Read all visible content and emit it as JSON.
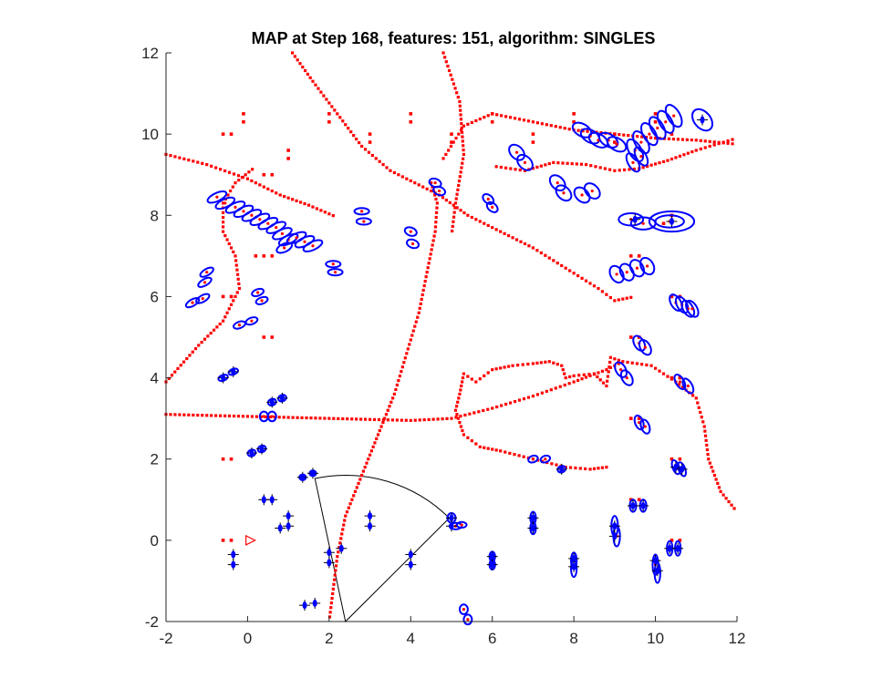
{
  "colors": {
    "landmark": "#ff0000",
    "feature_ellipse": "#0000ff",
    "cross": "#000000",
    "robot": "#ff0000",
    "axes": "#262626"
  },
  "chart_data": {
    "type": "scatter",
    "title": "MAP at Step 168, features: 151, algorithm: SINGLES",
    "xlabel": "",
    "ylabel": "",
    "xlim": [
      -2,
      12
    ],
    "ylim": [
      -2,
      12
    ],
    "x_ticks": [
      -2,
      0,
      2,
      4,
      6,
      8,
      10,
      12
    ],
    "y_ticks": [
      -2,
      0,
      2,
      4,
      6,
      8,
      10,
      12
    ],
    "grid": false,
    "legend": "none",
    "landmark_points": [
      [
        -0.6,
        10.0
      ],
      [
        -0.4,
        10.0
      ],
      [
        -0.1,
        10.5
      ],
      [
        -0.1,
        10.3
      ],
      [
        0.4,
        9.0
      ],
      [
        0.6,
        9.0
      ],
      [
        1.0,
        9.6
      ],
      [
        1.0,
        9.4
      ],
      [
        2.0,
        10.5
      ],
      [
        2.0,
        10.3
      ],
      [
        3.0,
        10.0
      ],
      [
        3.0,
        9.8
      ],
      [
        4.0,
        10.5
      ],
      [
        4.0,
        10.3
      ],
      [
        5.0,
        10.0
      ],
      [
        5.0,
        9.8
      ],
      [
        6.0,
        10.5
      ],
      [
        6.0,
        10.3
      ],
      [
        7.0,
        10.0
      ],
      [
        7.0,
        9.8
      ],
      [
        8.0,
        10.5
      ],
      [
        8.0,
        10.3
      ],
      [
        9.0,
        10.0
      ],
      [
        9.0,
        9.8
      ],
      [
        10.0,
        10.5
      ],
      [
        10.0,
        10.3
      ],
      [
        10.4,
        10.0
      ],
      [
        10.4,
        8.0
      ],
      [
        10.2,
        7.8
      ],
      [
        0.2,
        7.0
      ],
      [
        0.4,
        7.0
      ],
      [
        0.6,
        7.0
      ],
      [
        -0.6,
        6.0
      ],
      [
        -0.4,
        6.0
      ],
      [
        0.4,
        5.0
      ],
      [
        0.6,
        5.0
      ],
      [
        -0.6,
        2.0
      ],
      [
        -0.4,
        2.0
      ],
      [
        -0.6,
        0.0
      ],
      [
        -0.4,
        0.0
      ],
      [
        0.4,
        1.0
      ],
      [
        0.6,
        1.0
      ],
      [
        9.4,
        7.0
      ],
      [
        9.6,
        7.0
      ],
      [
        9.4,
        5.0
      ],
      [
        9.6,
        5.0
      ],
      [
        9.4,
        3.0
      ],
      [
        9.6,
        3.0
      ],
      [
        10.4,
        6.0
      ],
      [
        10.6,
        6.0
      ],
      [
        10.4,
        4.0
      ],
      [
        10.6,
        4.0
      ],
      [
        10.4,
        2.0
      ],
      [
        10.6,
        2.0
      ],
      [
        9.4,
        1.0
      ],
      [
        9.6,
        1.0
      ],
      [
        10.4,
        0.0
      ],
      [
        10.6,
        0.0
      ]
    ],
    "red_tracks": [
      [
        [
          -2.0,
          9.5
        ],
        [
          -1.0,
          9.25
        ],
        [
          0.0,
          8.9
        ],
        [
          0.8,
          8.5
        ],
        [
          1.5,
          8.25
        ],
        [
          2.2,
          7.95
        ]
      ],
      [
        [
          -2.0,
          3.9
        ],
        [
          -1.2,
          4.8
        ],
        [
          -0.6,
          5.4
        ],
        [
          -0.2,
          6.2
        ],
        [
          -0.3,
          7.0
        ],
        [
          -0.6,
          7.6
        ],
        [
          -0.6,
          8.3
        ],
        [
          -0.3,
          8.8
        ],
        [
          0.2,
          9.2
        ]
      ],
      [
        [
          1.1,
          12.0
        ],
        [
          1.6,
          11.3
        ],
        [
          2.2,
          10.5
        ],
        [
          2.8,
          9.7
        ],
        [
          3.5,
          9.1
        ],
        [
          4.3,
          8.7
        ],
        [
          4.7,
          8.5
        ],
        [
          5.4,
          8.0
        ],
        [
          6.2,
          7.6
        ],
        [
          7.0,
          7.2
        ],
        [
          7.8,
          6.7
        ],
        [
          8.6,
          6.2
        ],
        [
          9.0,
          5.9
        ],
        [
          9.5,
          6.0
        ]
      ],
      [
        [
          -2.0,
          3.1
        ],
        [
          0.0,
          3.05
        ],
        [
          2.0,
          3.0
        ],
        [
          4.0,
          2.95
        ],
        [
          5.0,
          3.0
        ],
        [
          6.0,
          3.25
        ],
        [
          7.0,
          3.55
        ],
        [
          8.0,
          3.9
        ],
        [
          8.8,
          4.2
        ],
        [
          9.2,
          4.4
        ]
      ],
      [
        [
          4.8,
          12.0
        ],
        [
          5.2,
          10.8
        ],
        [
          5.3,
          9.5
        ],
        [
          5.1,
          8.3
        ],
        [
          5.0,
          7.5
        ]
      ],
      [
        [
          4.8,
          9.4
        ],
        [
          5.3,
          10.2
        ],
        [
          6.0,
          10.5
        ],
        [
          7.0,
          10.3
        ],
        [
          8.0,
          10.1
        ],
        [
          9.0,
          10.0
        ],
        [
          10.0,
          9.9
        ],
        [
          11.0,
          9.85
        ],
        [
          12.0,
          9.75
        ]
      ],
      [
        [
          6.1,
          9.2
        ],
        [
          6.8,
          9.1
        ],
        [
          7.5,
          9.3
        ],
        [
          8.3,
          9.25
        ],
        [
          9.0,
          9.1
        ],
        [
          9.6,
          9.15
        ],
        [
          10.3,
          9.35
        ],
        [
          11.0,
          9.6
        ],
        [
          12.0,
          9.9
        ]
      ],
      [
        [
          4.5,
          8.8
        ],
        [
          4.65,
          8.3
        ],
        [
          4.6,
          7.6
        ],
        [
          4.4,
          6.6
        ],
        [
          4.2,
          5.6
        ],
        [
          3.9,
          4.6
        ],
        [
          3.6,
          3.6
        ],
        [
          3.2,
          2.6
        ],
        [
          2.8,
          1.6
        ],
        [
          2.4,
          0.6
        ],
        [
          2.2,
          -0.4
        ],
        [
          2.1,
          -1.2
        ],
        [
          2.0,
          -2.0
        ]
      ],
      [
        [
          9.2,
          4.4
        ],
        [
          9.9,
          4.3
        ],
        [
          10.5,
          3.9
        ],
        [
          11.0,
          3.5
        ],
        [
          11.2,
          2.8
        ],
        [
          11.3,
          2.0
        ],
        [
          11.6,
          1.2
        ],
        [
          12.0,
          0.7
        ]
      ],
      [
        [
          8.8,
          1.8
        ],
        [
          8.4,
          1.75
        ],
        [
          7.8,
          1.8
        ],
        [
          7.0,
          2.0
        ],
        [
          6.2,
          2.2
        ],
        [
          5.7,
          2.3
        ],
        [
          5.3,
          2.6
        ],
        [
          5.1,
          3.2
        ],
        [
          5.2,
          3.6
        ],
        [
          5.3,
          4.1
        ],
        [
          5.6,
          3.9
        ],
        [
          6.0,
          4.2
        ],
        [
          6.5,
          4.3
        ],
        [
          7.0,
          4.35
        ],
        [
          7.4,
          4.4
        ],
        [
          7.7,
          4.3
        ],
        [
          7.8,
          4.0
        ]
      ],
      [
        [
          7.8,
          4.0
        ],
        [
          8.0,
          4.05
        ],
        [
          8.5,
          4.1
        ],
        [
          8.8,
          3.8
        ],
        [
          8.9,
          4.5
        ],
        [
          9.2,
          4.4
        ]
      ]
    ],
    "feature_ellipses": [
      [
        -0.75,
        8.45,
        0.25,
        0.1,
        25
      ],
      [
        -0.55,
        8.3,
        0.25,
        0.1,
        25
      ],
      [
        -0.3,
        8.2,
        0.25,
        0.1,
        25
      ],
      [
        -0.1,
        8.1,
        0.25,
        0.1,
        25
      ],
      [
        0.1,
        8.0,
        0.25,
        0.1,
        25
      ],
      [
        0.3,
        7.9,
        0.25,
        0.1,
        25
      ],
      [
        0.5,
        7.8,
        0.25,
        0.1,
        25
      ],
      [
        0.7,
        7.7,
        0.25,
        0.1,
        25
      ],
      [
        0.85,
        7.55,
        0.25,
        0.1,
        25
      ],
      [
        1.0,
        7.4,
        0.25,
        0.1,
        25
      ],
      [
        1.2,
        7.45,
        0.25,
        0.1,
        25
      ],
      [
        1.4,
        7.35,
        0.25,
        0.1,
        25
      ],
      [
        1.6,
        7.25,
        0.25,
        0.1,
        25
      ],
      [
        0.9,
        7.2,
        0.2,
        0.1,
        25
      ],
      [
        2.1,
        6.8,
        0.18,
        0.08,
        0
      ],
      [
        2.15,
        6.6,
        0.18,
        0.08,
        0
      ],
      [
        2.8,
        8.1,
        0.18,
        0.08,
        0
      ],
      [
        2.85,
        7.85,
        0.18,
        0.08,
        0
      ],
      [
        4.0,
        7.6,
        0.15,
        0.1,
        -20
      ],
      [
        4.05,
        7.3,
        0.15,
        0.1,
        -20
      ],
      [
        4.6,
        8.8,
        0.15,
        0.1,
        -20
      ],
      [
        4.7,
        8.6,
        0.15,
        0.1,
        -20
      ],
      [
        5.9,
        8.4,
        0.15,
        0.1,
        -40
      ],
      [
        6.0,
        8.2,
        0.15,
        0.1,
        -40
      ],
      [
        -1.0,
        6.6,
        0.18,
        0.08,
        30
      ],
      [
        -1.05,
        6.35,
        0.18,
        0.08,
        30
      ],
      [
        -1.35,
        5.85,
        0.18,
        0.08,
        30
      ],
      [
        -1.1,
        5.95,
        0.18,
        0.08,
        30
      ],
      [
        0.25,
        6.1,
        0.15,
        0.08,
        20
      ],
      [
        0.35,
        5.9,
        0.15,
        0.08,
        20
      ],
      [
        -0.2,
        5.3,
        0.15,
        0.08,
        20
      ],
      [
        0.1,
        5.4,
        0.15,
        0.08,
        20
      ],
      [
        -0.6,
        4.0,
        0.12,
        0.07,
        20
      ],
      [
        -0.35,
        4.15,
        0.12,
        0.07,
        20
      ],
      [
        0.6,
        3.4,
        0.1,
        0.08,
        20
      ],
      [
        0.85,
        3.5,
        0.1,
        0.08,
        20
      ],
      [
        0.4,
        3.05,
        0.1,
        0.12,
        0
      ],
      [
        0.6,
        3.05,
        0.1,
        0.12,
        0
      ],
      [
        0.1,
        2.15,
        0.1,
        0.08,
        20
      ],
      [
        0.35,
        2.25,
        0.1,
        0.08,
        20
      ],
      [
        1.35,
        1.55,
        0.08,
        0.07,
        0
      ],
      [
        1.6,
        1.65,
        0.08,
        0.07,
        0
      ],
      [
        6.6,
        9.55,
        0.15,
        0.22,
        45
      ],
      [
        6.8,
        9.3,
        0.15,
        0.22,
        45
      ],
      [
        7.6,
        8.8,
        0.15,
        0.22,
        45
      ],
      [
        7.75,
        8.55,
        0.15,
        0.22,
        45
      ],
      [
        8.2,
        8.5,
        0.15,
        0.22,
        45
      ],
      [
        8.45,
        8.6,
        0.15,
        0.22,
        45
      ],
      [
        8.2,
        10.1,
        0.15,
        0.25,
        60
      ],
      [
        8.4,
        9.95,
        0.15,
        0.25,
        60
      ],
      [
        8.6,
        9.85,
        0.15,
        0.25,
        60
      ],
      [
        8.85,
        9.85,
        0.15,
        0.25,
        60
      ],
      [
        9.05,
        9.75,
        0.15,
        0.25,
        60
      ],
      [
        9.5,
        9.6,
        0.15,
        0.3,
        30
      ],
      [
        9.65,
        9.8,
        0.15,
        0.3,
        30
      ],
      [
        9.85,
        10.0,
        0.15,
        0.3,
        30
      ],
      [
        10.05,
        10.15,
        0.15,
        0.3,
        30
      ],
      [
        10.25,
        10.3,
        0.15,
        0.3,
        30
      ],
      [
        10.45,
        10.45,
        0.15,
        0.3,
        30
      ],
      [
        9.45,
        9.3,
        0.12,
        0.25,
        30
      ],
      [
        9.65,
        9.45,
        0.12,
        0.25,
        30
      ],
      [
        11.15,
        10.35,
        0.2,
        0.3,
        40
      ],
      [
        9.4,
        7.9,
        0.3,
        0.15,
        0
      ],
      [
        9.7,
        7.8,
        0.3,
        0.15,
        0
      ],
      [
        10.4,
        7.85,
        0.55,
        0.25,
        0
      ],
      [
        10.35,
        7.85,
        0.35,
        0.15,
        0
      ],
      [
        9.05,
        6.55,
        0.15,
        0.22,
        30
      ],
      [
        9.3,
        6.6,
        0.15,
        0.22,
        30
      ],
      [
        9.55,
        6.7,
        0.15,
        0.22,
        30
      ],
      [
        9.8,
        6.75,
        0.15,
        0.22,
        30
      ],
      [
        10.5,
        5.85,
        0.12,
        0.22,
        30
      ],
      [
        10.65,
        5.8,
        0.12,
        0.22,
        30
      ],
      [
        10.8,
        5.7,
        0.12,
        0.22,
        30
      ],
      [
        10.9,
        5.7,
        0.12,
        0.22,
        30
      ],
      [
        9.6,
        4.85,
        0.12,
        0.2,
        30
      ],
      [
        9.75,
        4.75,
        0.12,
        0.2,
        30
      ],
      [
        9.3,
        4.0,
        0.12,
        0.2,
        30
      ],
      [
        9.15,
        4.2,
        0.12,
        0.2,
        30
      ],
      [
        10.6,
        3.9,
        0.1,
        0.2,
        30
      ],
      [
        10.8,
        3.8,
        0.1,
        0.2,
        30
      ],
      [
        9.6,
        2.9,
        0.1,
        0.18,
        20
      ],
      [
        9.75,
        2.8,
        0.1,
        0.18,
        20
      ],
      [
        10.5,
        1.8,
        0.08,
        0.18,
        20
      ],
      [
        10.65,
        1.75,
        0.08,
        0.18,
        20
      ],
      [
        7.0,
        2.0,
        0.12,
        0.08,
        20
      ],
      [
        7.3,
        2.0,
        0.12,
        0.08,
        20
      ],
      [
        7.7,
        1.75,
        0.1,
        0.08,
        20
      ],
      [
        9.45,
        0.85,
        0.08,
        0.15,
        0
      ],
      [
        9.7,
        0.85,
        0.08,
        0.15,
        0
      ],
      [
        9.0,
        0.35,
        0.08,
        0.25,
        0
      ],
      [
        9.05,
        0.1,
        0.08,
        0.25,
        0
      ],
      [
        10.35,
        -0.2,
        0.07,
        0.18,
        0
      ],
      [
        10.55,
        -0.2,
        0.07,
        0.18,
        0
      ],
      [
        10.0,
        -0.6,
        0.07,
        0.25,
        0
      ],
      [
        10.05,
        -0.8,
        0.07,
        0.25,
        0
      ],
      [
        8.0,
        -0.5,
        0.07,
        0.2,
        0
      ],
      [
        8.0,
        -0.7,
        0.07,
        0.2,
        0
      ],
      [
        7.0,
        0.55,
        0.07,
        0.15,
        0
      ],
      [
        7.0,
        0.3,
        0.07,
        0.15,
        0
      ],
      [
        5.0,
        0.55,
        0.1,
        0.12,
        0
      ],
      [
        5.1,
        0.35,
        0.15,
        0.08,
        0
      ],
      [
        5.25,
        0.38,
        0.12,
        0.07,
        0
      ],
      [
        5.3,
        -1.7,
        0.1,
        0.12,
        0
      ],
      [
        5.4,
        -1.95,
        0.1,
        0.12,
        0
      ],
      [
        6.0,
        -0.4,
        0.07,
        0.12,
        0
      ],
      [
        6.0,
        -0.6,
        0.07,
        0.12,
        0
      ]
    ],
    "cross_markers": [
      [
        -0.35,
        -0.35
      ],
      [
        -0.35,
        -0.6
      ],
      [
        0.4,
        1.0
      ],
      [
        0.6,
        1.0
      ],
      [
        0.8,
        0.3
      ],
      [
        1.0,
        0.6
      ],
      [
        1.0,
        0.35
      ],
      [
        2.0,
        -0.3
      ],
      [
        2.0,
        -0.55
      ],
      [
        2.3,
        -0.2
      ],
      [
        3.0,
        0.6
      ],
      [
        3.0,
        0.35
      ],
      [
        4.0,
        -0.35
      ],
      [
        4.0,
        -0.6
      ],
      [
        1.4,
        -1.6
      ],
      [
        1.65,
        -1.55
      ],
      [
        5.0,
        0.55
      ],
      [
        5.0,
        0.35
      ],
      [
        6.0,
        -0.4
      ],
      [
        6.0,
        -0.6
      ],
      [
        7.0,
        0.55
      ],
      [
        7.0,
        0.3
      ],
      [
        8.0,
        -0.45
      ],
      [
        8.0,
        -0.65
      ],
      [
        9.0,
        0.35
      ],
      [
        9.0,
        0.1
      ],
      [
        9.45,
        0.85
      ],
      [
        9.7,
        0.85
      ],
      [
        10.0,
        -0.5
      ],
      [
        10.05,
        -0.75
      ],
      [
        10.35,
        -0.2
      ],
      [
        10.55,
        -0.2
      ],
      [
        -0.6,
        4.0
      ],
      [
        -0.35,
        4.15
      ],
      [
        0.6,
        3.4
      ],
      [
        0.85,
        3.5
      ],
      [
        0.1,
        2.15
      ],
      [
        0.35,
        2.25
      ],
      [
        1.35,
        1.55
      ],
      [
        1.6,
        1.65
      ],
      [
        10.4,
        7.85
      ],
      [
        11.15,
        10.35
      ],
      [
        9.5,
        7.9
      ],
      [
        10.5,
        1.8
      ],
      [
        10.65,
        1.75
      ],
      [
        7.7,
        1.75
      ]
    ],
    "robot_position": [
      0.05,
      0.0
    ],
    "field_of_view": {
      "apex": [
        2.4,
        -2.0
      ],
      "radius": 3.6,
      "angle_start_deg": 45,
      "angle_end_deg": 102
    }
  }
}
